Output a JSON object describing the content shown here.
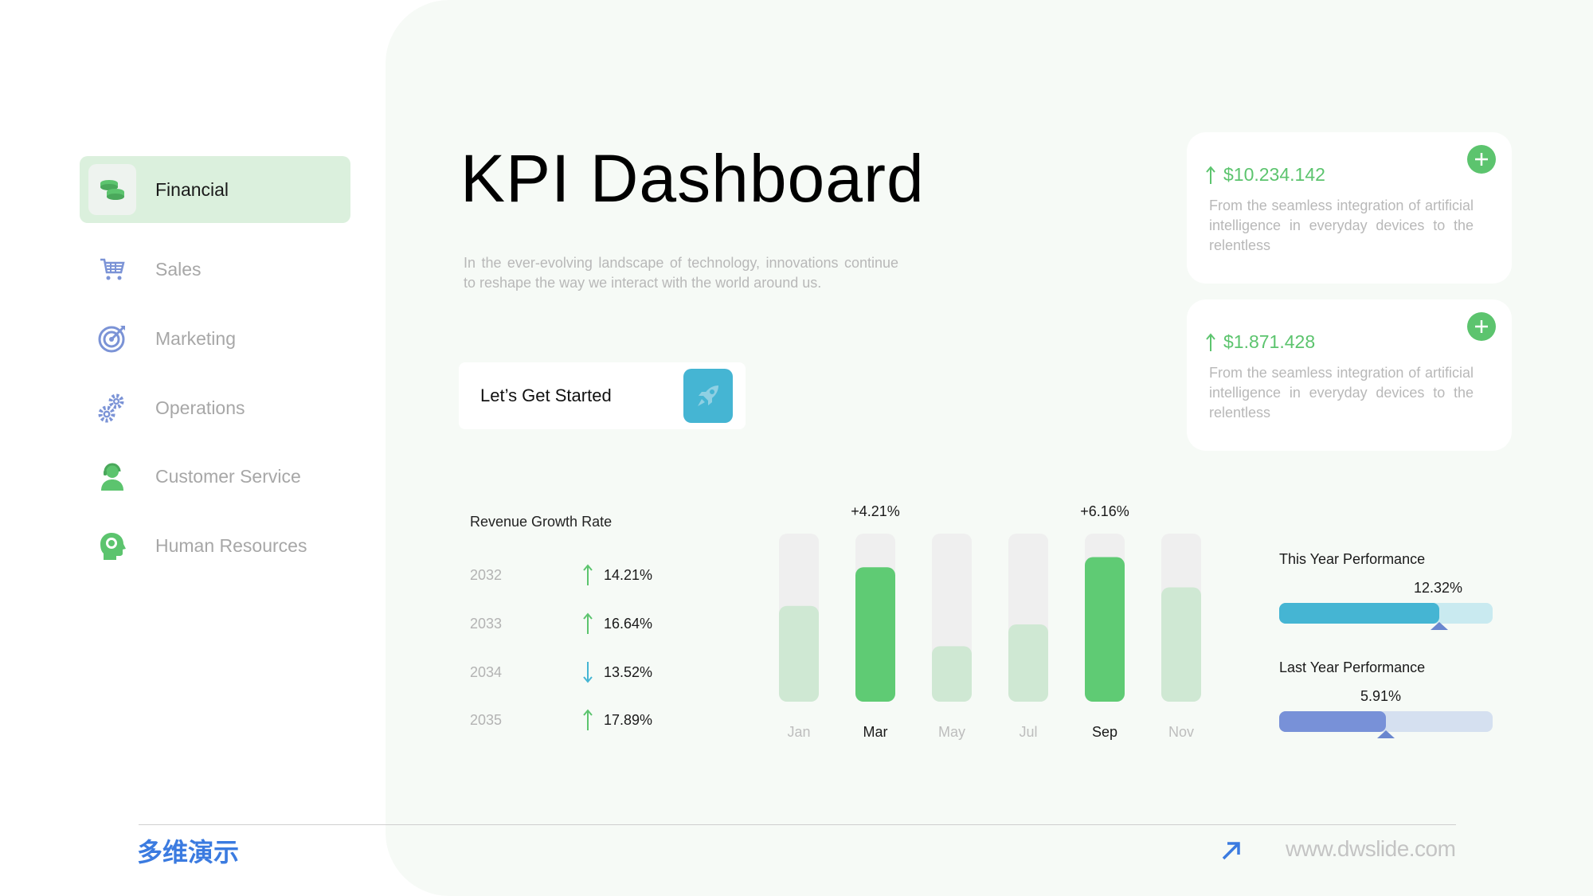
{
  "sidebar": {
    "items": [
      {
        "label": "Financial",
        "icon": "coins-icon",
        "active": true
      },
      {
        "label": "Sales",
        "icon": "cart-icon"
      },
      {
        "label": "Marketing",
        "icon": "target-icon"
      },
      {
        "label": "Operations",
        "icon": "gears-icon"
      },
      {
        "label": "Customer Service",
        "icon": "headset-agent-icon"
      },
      {
        "label": "Human Resources",
        "icon": "head-brain-icon"
      }
    ]
  },
  "main": {
    "title": "KPI Dashboard",
    "intro": "In the ever-evolving landscape of technology, innovations continue to reshape the way we interact with the world around us.",
    "cta_label": "Let’s Get Started",
    "cta_icon": "rocket-icon"
  },
  "cards": [
    {
      "value": "$10.234.142",
      "description": "From the seamless integration of artificial intelligence in everyday devices to the relentless"
    },
    {
      "value": "$1.871.428",
      "description": "From the seamless integration of artificial intelligence in everyday devices to the relentless"
    }
  ],
  "revenue": {
    "title": "Revenue Growth Rate",
    "rows": [
      {
        "year": "2032",
        "value": "14.21%",
        "direction": "up"
      },
      {
        "year": "2033",
        "value": "16.64%",
        "direction": "up"
      },
      {
        "year": "2034",
        "value": "13.52%",
        "direction": "down"
      },
      {
        "year": "2035",
        "value": "17.89%",
        "direction": "up"
      }
    ]
  },
  "chart_data": {
    "type": "bar",
    "categories": [
      "Jan",
      "Mar",
      "May",
      "Jul",
      "Sep",
      "Nov"
    ],
    "values": [
      57,
      80,
      33,
      46,
      86,
      68
    ],
    "ylim": [
      0,
      100
    ],
    "highlighted": [
      "Mar",
      "Sep"
    ],
    "annotations": [
      {
        "category": "Mar",
        "text": "+4.21%"
      },
      {
        "category": "Sep",
        "text": "+6.16%"
      }
    ],
    "grid": false,
    "colors": {
      "highlight": "#5fcb74",
      "normal": "#cfe8d3",
      "track": "#efefef"
    }
  },
  "performance": {
    "this_year": {
      "label": "This Year Performance",
      "value": "12.32%",
      "fill_fraction": 0.75,
      "color": "#45b5d3",
      "track_color": "#c9eaf0"
    },
    "last_year": {
      "label": "Last Year Performance",
      "value": "5.91%",
      "fill_fraction": 0.5,
      "color": "#7891d8",
      "track_color": "#d5e0f0"
    }
  },
  "footer": {
    "brand": "多维演示",
    "site": "www.dwslide.com"
  },
  "colors": {
    "accent_green": "#5cc46e",
    "accent_blue": "#45b5d3",
    "brand_blue": "#3b7be0"
  }
}
